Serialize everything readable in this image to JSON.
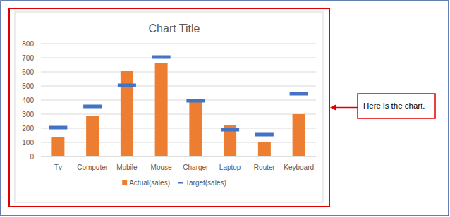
{
  "chart_data": {
    "type": "bar",
    "title": "Chart Title",
    "categories": [
      "Tv",
      "Computer",
      "Mobile",
      "Mouse",
      "Charger",
      "Laptop",
      "Router",
      "Keyboard"
    ],
    "series": [
      {
        "name": "Actual(sales)",
        "type": "bar",
        "color": "#ed7d31",
        "values": [
          140,
          290,
          605,
          660,
          390,
          220,
          100,
          300
        ]
      },
      {
        "name": "Target(sales)",
        "type": "scatter",
        "marker": "dash",
        "color": "#4472c4",
        "values": [
          205,
          355,
          505,
          705,
          395,
          190,
          155,
          445
        ]
      }
    ],
    "ylim": [
      0,
      800
    ],
    "yticks": [
      0,
      100,
      200,
      300,
      400,
      500,
      600,
      700,
      800
    ],
    "grid": true,
    "legend": "bottom",
    "annotations": [
      "Here is the chart."
    ]
  }
}
